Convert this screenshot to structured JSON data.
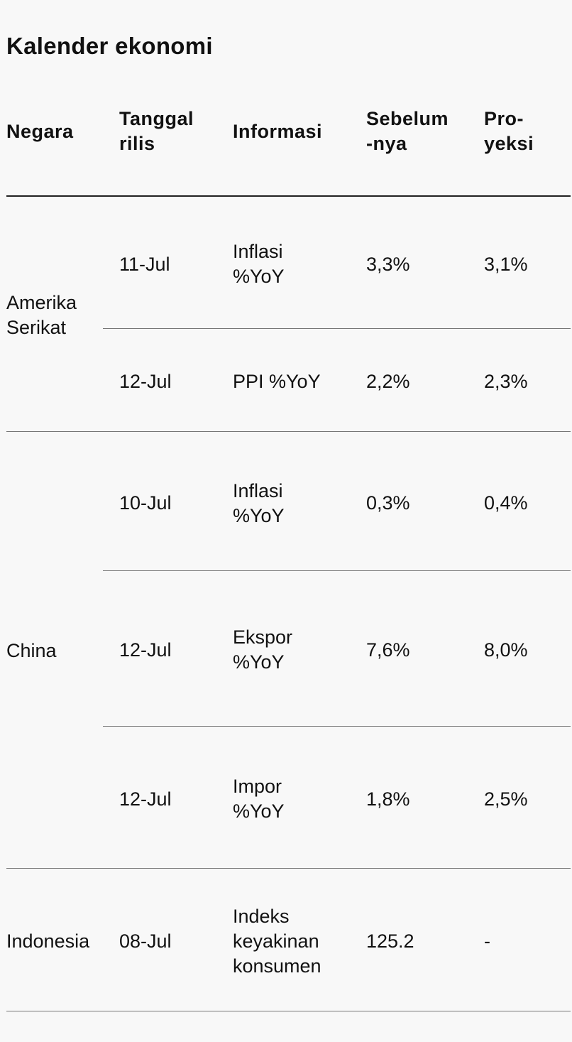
{
  "title": "Kalender ekonomi",
  "headers": {
    "country": "Negara",
    "date": "Tanggal\nrilis",
    "info": "Informasi",
    "previous": "Sebelum\n-nya",
    "projection": "Pro-\nyeksi"
  },
  "groups": [
    {
      "country": "Amerika\nSerikat",
      "rows": [
        {
          "date": "11-Jul",
          "info": "Inflasi\n%YoY",
          "previous": "3,3%",
          "projection": "3,1%"
        },
        {
          "date": "12-Jul",
          "info": "PPI %YoY",
          "previous": "2,2%",
          "projection": "2,3%"
        }
      ]
    },
    {
      "country": "China",
      "rows": [
        {
          "date": "10-Jul",
          "info": "Inflasi\n%YoY",
          "previous": "0,3%",
          "projection": "0,4%"
        },
        {
          "date": "12-Jul",
          "info": "Ekspor\n%YoY",
          "previous": "7,6%",
          "projection": "8,0%"
        },
        {
          "date": "12-Jul",
          "info": "Impor\n%YoY",
          "previous": "1,8%",
          "projection": "2,5%"
        }
      ]
    },
    {
      "country": "Indonesia",
      "rows": [
        {
          "date": "08-Jul",
          "info": "Indeks\nkeyakinan\nkonsumen",
          "previous": "125.2",
          "projection": "-"
        }
      ]
    }
  ]
}
